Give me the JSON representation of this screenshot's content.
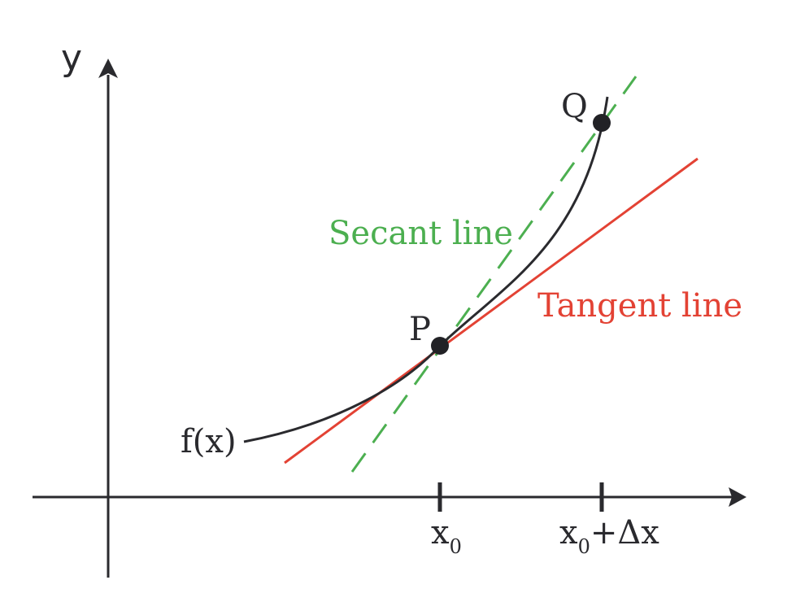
{
  "axes": {
    "x_label": "",
    "y_label": "y"
  },
  "curve": {
    "label": "f(x)",
    "color": "#2a2a2e"
  },
  "points": {
    "p": {
      "label": "P"
    },
    "q": {
      "label": "Q"
    },
    "color": "#222226"
  },
  "secant": {
    "label": "Secant line",
    "color": "#4caf50"
  },
  "tangent": {
    "label": "Tangent line",
    "color": "#e34234"
  },
  "ticks": {
    "x0": {
      "base": "x",
      "sub": "0",
      "suffix": ""
    },
    "x0_dx": {
      "base": "x",
      "sub": "0",
      "suffix": "+Δx"
    }
  }
}
